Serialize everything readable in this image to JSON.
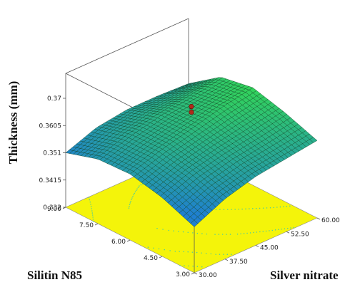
{
  "chart_data": {
    "type": "surface3d",
    "title": "",
    "zlabel": "Thickness (mm)",
    "xlabel": "Silitin N85",
    "ylabel": "Silver nitrate",
    "x_ticks": [
      "9.00",
      "7.50",
      "6.00",
      "4.50",
      "3.00"
    ],
    "y_ticks": [
      "30.00",
      "37.50",
      "45.00",
      "52.50",
      "60.00"
    ],
    "z_ticks": [
      "0.37",
      "0.3605",
      "0.351",
      "0.3415",
      "0.332"
    ],
    "xlim": [
      3,
      9
    ],
    "ylim": [
      30,
      60
    ],
    "zlim": [
      0.332,
      0.37
    ],
    "x": [
      3,
      4.5,
      6,
      7.5,
      9
    ],
    "y": [
      30,
      37.5,
      45,
      52.5,
      60
    ],
    "z_grid": [
      [
        0.348,
        0.3525,
        0.355,
        0.3545,
        0.351
      ],
      [
        0.353,
        0.3565,
        0.3585,
        0.358,
        0.355
      ],
      [
        0.356,
        0.359,
        0.3612,
        0.3605,
        0.3565
      ],
      [
        0.3575,
        0.3608,
        0.364,
        0.362,
        0.3565
      ],
      [
        0.359,
        0.363,
        0.366,
        0.364,
        0.356
      ]
    ],
    "design_points": [
      {
        "x": 6,
        "y": 45,
        "z": 0.369
      },
      {
        "x": 6,
        "y": 45,
        "z": 0.367
      }
    ],
    "contour_floor": true,
    "colors": {
      "surface_high": "#32d35a",
      "surface_low": "#1f7fd0",
      "floor": "#f4f40a",
      "contour": "#3ec9a8",
      "design_point": "#b0291a"
    }
  }
}
